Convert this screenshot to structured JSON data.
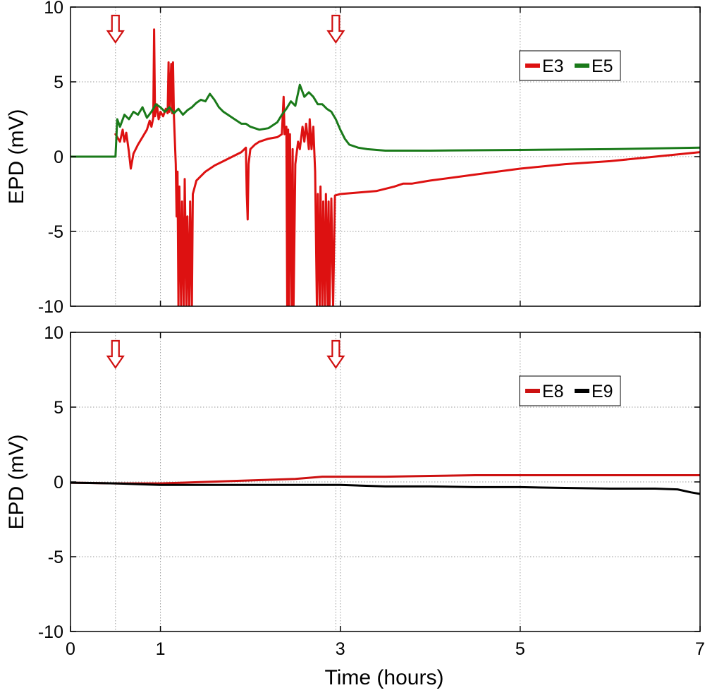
{
  "chart_data": [
    {
      "type": "line",
      "xlabel": "",
      "ylabel": "EPD (mV)",
      "xlim": [
        0,
        7
      ],
      "ylim": [
        -10,
        10
      ],
      "x_ticks": [
        1,
        3,
        5,
        7
      ],
      "y_ticks": [
        10,
        5,
        0,
        -5,
        -10
      ],
      "y_tick_labels": [
        "10",
        "5",
        "0",
        "-5",
        "-10"
      ],
      "grid": true,
      "legend_position": "top-right",
      "annotations": [
        {
          "type": "down-arrow",
          "x": 0.5,
          "color": "#d01010"
        },
        {
          "type": "down-arrow",
          "x": 2.95,
          "color": "#d01010"
        }
      ],
      "series": [
        {
          "name": "E3",
          "color": "#dd1111",
          "points": [
            [
              0.5,
              1.5
            ],
            [
              0.55,
              1.0
            ],
            [
              0.58,
              1.8
            ],
            [
              0.6,
              1.0
            ],
            [
              0.62,
              1.6
            ],
            [
              0.65,
              0.3
            ],
            [
              0.67,
              -0.8
            ],
            [
              0.7,
              0.2
            ],
            [
              0.75,
              0.8
            ],
            [
              0.8,
              1.3
            ],
            [
              0.85,
              1.8
            ],
            [
              0.88,
              2.4
            ],
            [
              0.9,
              2.0
            ],
            [
              0.92,
              2.6
            ],
            [
              0.93,
              8.5
            ],
            [
              0.94,
              2.7
            ],
            [
              0.96,
              3.5
            ],
            [
              0.98,
              2.5
            ],
            [
              1.0,
              3.0
            ],
            [
              1.03,
              2.7
            ],
            [
              1.06,
              3.2
            ],
            [
              1.08,
              2.9
            ],
            [
              1.09,
              6.3
            ],
            [
              1.1,
              3.0
            ],
            [
              1.12,
              6.2
            ],
            [
              1.13,
              2.9
            ],
            [
              1.14,
              6.3
            ],
            [
              1.15,
              2.7
            ],
            [
              1.17,
              -0.5
            ],
            [
              1.18,
              -4.0
            ],
            [
              1.19,
              -1.0
            ],
            [
              1.2,
              -10
            ],
            [
              1.21,
              -2.0
            ],
            [
              1.23,
              -10
            ],
            [
              1.24,
              -3.0
            ],
            [
              1.26,
              -10
            ],
            [
              1.27,
              -1.5
            ],
            [
              1.29,
              -10
            ],
            [
              1.3,
              -4.0
            ],
            [
              1.32,
              -10
            ],
            [
              1.33,
              -3.0
            ],
            [
              1.35,
              -10
            ],
            [
              1.36,
              -2.5
            ],
            [
              1.4,
              -1.6
            ],
            [
              1.5,
              -1.0
            ],
            [
              1.6,
              -0.6
            ],
            [
              1.7,
              -0.3
            ],
            [
              1.8,
              0.0
            ],
            [
              1.9,
              0.3
            ],
            [
              1.95,
              0.6
            ],
            [
              1.96,
              -2.5
            ],
            [
              1.97,
              -4.2
            ],
            [
              1.98,
              -0.5
            ],
            [
              2.0,
              0.5
            ],
            [
              2.05,
              0.8
            ],
            [
              2.1,
              1.0
            ],
            [
              2.2,
              1.2
            ],
            [
              2.3,
              1.3
            ],
            [
              2.35,
              1.5
            ],
            [
              2.37,
              4.0
            ],
            [
              2.38,
              1.5
            ],
            [
              2.4,
              2.0
            ],
            [
              2.41,
              -10
            ],
            [
              2.42,
              1.8
            ],
            [
              2.43,
              -10
            ],
            [
              2.44,
              1.5
            ],
            [
              2.46,
              -10
            ],
            [
              2.47,
              0.5
            ],
            [
              2.48,
              -10
            ],
            [
              2.5,
              -0.5
            ],
            [
              2.53,
              1.0
            ],
            [
              2.55,
              0.5
            ],
            [
              2.58,
              2.0
            ],
            [
              2.6,
              1.0
            ],
            [
              2.62,
              2.2
            ],
            [
              2.65,
              0.5
            ],
            [
              2.66,
              2.5
            ],
            [
              2.68,
              0.5
            ],
            [
              2.7,
              2.0
            ],
            [
              2.72,
              -1.0
            ],
            [
              2.74,
              -10
            ],
            [
              2.75,
              -2.5
            ],
            [
              2.77,
              -10
            ],
            [
              2.78,
              -2.0
            ],
            [
              2.8,
              -10
            ],
            [
              2.81,
              -3.0
            ],
            [
              2.83,
              -10
            ],
            [
              2.84,
              -2.5
            ],
            [
              2.86,
              -10
            ],
            [
              2.87,
              -3.0
            ],
            [
              2.88,
              -10
            ],
            [
              2.9,
              -2.8
            ],
            [
              2.92,
              -10
            ],
            [
              2.94,
              -2.6
            ],
            [
              3.0,
              -2.5
            ],
            [
              3.2,
              -2.4
            ],
            [
              3.4,
              -2.3
            ],
            [
              3.6,
              -2.0
            ],
            [
              3.7,
              -1.8
            ],
            [
              3.8,
              -1.8
            ],
            [
              3.9,
              -1.7
            ],
            [
              4.0,
              -1.6
            ],
            [
              4.5,
              -1.2
            ],
            [
              5.0,
              -0.8
            ],
            [
              5.5,
              -0.5
            ],
            [
              6.0,
              -0.3
            ],
            [
              6.5,
              0.0
            ],
            [
              7.0,
              0.3
            ]
          ]
        },
        {
          "name": "E5",
          "color": "#1a7a1a",
          "points": [
            [
              0.0,
              0.0
            ],
            [
              0.3,
              0.0
            ],
            [
              0.5,
              0.0
            ],
            [
              0.52,
              2.5
            ],
            [
              0.55,
              2.0
            ],
            [
              0.6,
              2.8
            ],
            [
              0.65,
              2.5
            ],
            [
              0.7,
              3.0
            ],
            [
              0.75,
              2.8
            ],
            [
              0.8,
              3.3
            ],
            [
              0.85,
              2.6
            ],
            [
              0.9,
              3.0
            ],
            [
              0.95,
              3.5
            ],
            [
              1.0,
              3.3
            ],
            [
              1.05,
              3.0
            ],
            [
              1.1,
              3.3
            ],
            [
              1.15,
              2.9
            ],
            [
              1.2,
              3.2
            ],
            [
              1.25,
              2.8
            ],
            [
              1.3,
              3.1
            ],
            [
              1.35,
              3.3
            ],
            [
              1.4,
              3.6
            ],
            [
              1.45,
              3.8
            ],
            [
              1.5,
              3.7
            ],
            [
              1.55,
              4.2
            ],
            [
              1.6,
              3.8
            ],
            [
              1.65,
              3.3
            ],
            [
              1.7,
              3.0
            ],
            [
              1.75,
              2.8
            ],
            [
              1.8,
              2.6
            ],
            [
              1.85,
              2.4
            ],
            [
              1.9,
              2.2
            ],
            [
              1.95,
              2.2
            ],
            [
              2.0,
              2.0
            ],
            [
              2.1,
              1.8
            ],
            [
              2.2,
              1.9
            ],
            [
              2.3,
              2.3
            ],
            [
              2.35,
              2.8
            ],
            [
              2.4,
              3.2
            ],
            [
              2.45,
              3.7
            ],
            [
              2.5,
              3.4
            ],
            [
              2.55,
              4.8
            ],
            [
              2.6,
              4.0
            ],
            [
              2.65,
              4.3
            ],
            [
              2.7,
              4.0
            ],
            [
              2.75,
              3.5
            ],
            [
              2.8,
              3.5
            ],
            [
              2.85,
              3.2
            ],
            [
              2.9,
              3.0
            ],
            [
              2.95,
              2.5
            ],
            [
              3.0,
              1.8
            ],
            [
              3.05,
              1.2
            ],
            [
              3.1,
              0.8
            ],
            [
              3.2,
              0.6
            ],
            [
              3.3,
              0.5
            ],
            [
              3.5,
              0.4
            ],
            [
              4.0,
              0.4
            ],
            [
              5.0,
              0.45
            ],
            [
              6.0,
              0.5
            ],
            [
              7.0,
              0.6
            ]
          ]
        }
      ]
    },
    {
      "type": "line",
      "xlabel": "Time (hours)",
      "ylabel": "EPD (mV)",
      "xlim": [
        0,
        7
      ],
      "ylim": [
        -10,
        10
      ],
      "x_ticks": [
        0,
        1,
        3,
        5,
        7
      ],
      "x_tick_labels": [
        "0",
        "1",
        "3",
        "5",
        "7"
      ],
      "y_ticks": [
        10,
        5,
        0,
        -5,
        -10
      ],
      "y_tick_labels": [
        "10",
        "5",
        "0",
        "-5",
        "-10"
      ],
      "grid": true,
      "legend_position": "top-right",
      "annotations": [
        {
          "type": "down-arrow",
          "x": 0.5,
          "color": "#d01010"
        },
        {
          "type": "down-arrow",
          "x": 2.95,
          "color": "#d01010"
        }
      ],
      "series": [
        {
          "name": "E8",
          "color": "#cc1111",
          "points": [
            [
              0.0,
              -0.05
            ],
            [
              0.5,
              -0.1
            ],
            [
              1.0,
              -0.1
            ],
            [
              1.5,
              0.0
            ],
            [
              2.0,
              0.1
            ],
            [
              2.5,
              0.2
            ],
            [
              2.8,
              0.35
            ],
            [
              3.0,
              0.35
            ],
            [
              3.5,
              0.35
            ],
            [
              4.0,
              0.4
            ],
            [
              4.5,
              0.45
            ],
            [
              5.0,
              0.45
            ],
            [
              5.5,
              0.45
            ],
            [
              6.0,
              0.45
            ],
            [
              6.5,
              0.45
            ],
            [
              7.0,
              0.45
            ]
          ]
        },
        {
          "name": "E9",
          "color": "#000000",
          "points": [
            [
              0.0,
              -0.05
            ],
            [
              0.5,
              -0.1
            ],
            [
              1.0,
              -0.2
            ],
            [
              1.5,
              -0.2
            ],
            [
              2.0,
              -0.2
            ],
            [
              2.5,
              -0.2
            ],
            [
              3.0,
              -0.2
            ],
            [
              3.5,
              -0.3
            ],
            [
              4.0,
              -0.3
            ],
            [
              4.5,
              -0.35
            ],
            [
              5.0,
              -0.35
            ],
            [
              5.5,
              -0.4
            ],
            [
              6.0,
              -0.45
            ],
            [
              6.5,
              -0.45
            ],
            [
              6.75,
              -0.5
            ],
            [
              6.9,
              -0.7
            ],
            [
              7.0,
              -0.8
            ]
          ]
        }
      ]
    }
  ]
}
